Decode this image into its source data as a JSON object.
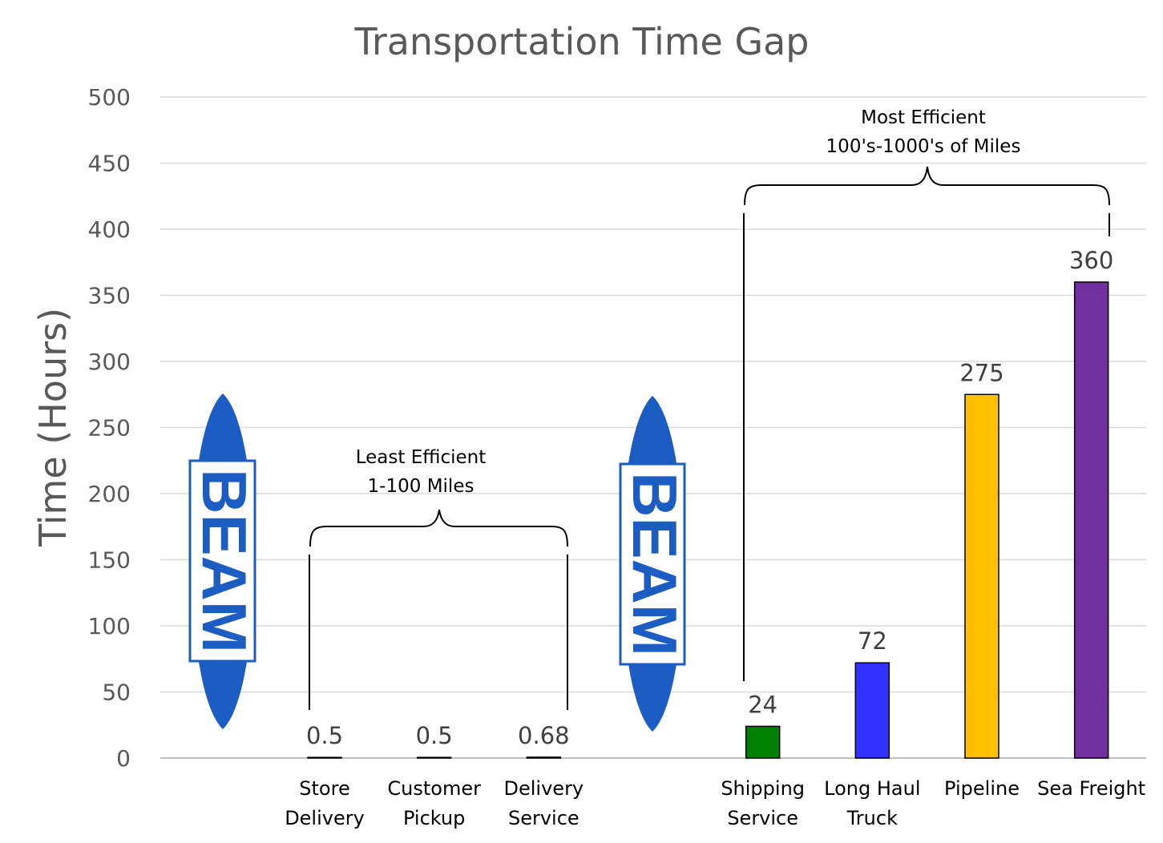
{
  "chart_data": {
    "type": "bar",
    "title": "Transportation Time Gap",
    "ylabel": "Time (Hours)",
    "xlabel": "",
    "ylim": [
      0,
      500
    ],
    "yticks": [
      0,
      50,
      100,
      150,
      200,
      250,
      300,
      350,
      400,
      450,
      500
    ],
    "grid": true,
    "categories": [
      {
        "line1": "Store",
        "line2": "Delivery"
      },
      {
        "line1": "Customer",
        "line2": "Pickup"
      },
      {
        "line1": "Delivery",
        "line2": "Service"
      },
      {
        "line1": "Shipping",
        "line2": "Service"
      },
      {
        "line1": "Long Haul",
        "line2": "Truck"
      },
      {
        "line1": "Pipeline",
        "line2": ""
      },
      {
        "line1": "Sea Freight",
        "line2": ""
      }
    ],
    "values": [
      0.5,
      0.5,
      0.68,
      24,
      72,
      275,
      360
    ],
    "data_labels": [
      "0.5",
      "0.5",
      "0.68",
      "24",
      "72",
      "275",
      "360"
    ],
    "colors": [
      "#000000",
      "#000000",
      "#000000",
      "#008000",
      "#3333FF",
      "#FFC000",
      "#7030A0"
    ],
    "annotations": [
      {
        "line1": "Least Efficient",
        "line2": "1-100 Miles"
      },
      {
        "line1": "Most Efficient",
        "line2": "100's-1000's of Miles"
      }
    ],
    "logo_text": "BEAM",
    "logo_color": "#1C5DC4"
  }
}
